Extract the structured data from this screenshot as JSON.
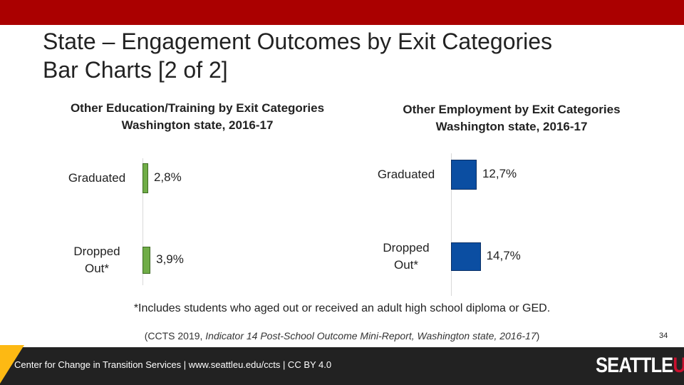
{
  "slide": {
    "title_lines": [
      "State – Engagement Outcomes by Exit Categories",
      "Bar Charts [2 of 2]"
    ],
    "footnote": "*Includes students who aged out or received an adult high school diploma or GED.",
    "citation": [
      "(CCTS 2019, ",
      "Indicator 14 Post-School Outcome Mini-Report, Washington state, 2016-17",
      ")"
    ],
    "page_number": "34",
    "footer": "Center for Change in Transition Services | www.seattleu.edu/ccts | CC BY 4.0",
    "logo": [
      "SEATTLE",
      "U"
    ]
  },
  "chart_data": [
    {
      "type": "bar",
      "orientation": "horizontal",
      "title": "Other Education/Training by Exit Categories",
      "subtitle": "Washington state, 2016-17",
      "categories": [
        "Graduated",
        "Dropped Out*"
      ],
      "values": [
        2.8,
        3.9
      ],
      "value_labels": [
        "2,8%",
        "3,9%"
      ],
      "color": "#70ad47",
      "xlim": [
        0,
        100
      ]
    },
    {
      "type": "bar",
      "orientation": "horizontal",
      "title": "Other Employment by Exit Categories",
      "subtitle": "Washington state, 2016-17",
      "categories": [
        "Graduated",
        "Dropped Out*"
      ],
      "values": [
        12.7,
        14.7
      ],
      "value_labels": [
        "12,7%",
        "14,7%"
      ],
      "color": "#0b4ea2",
      "xlim": [
        0,
        100
      ]
    }
  ]
}
